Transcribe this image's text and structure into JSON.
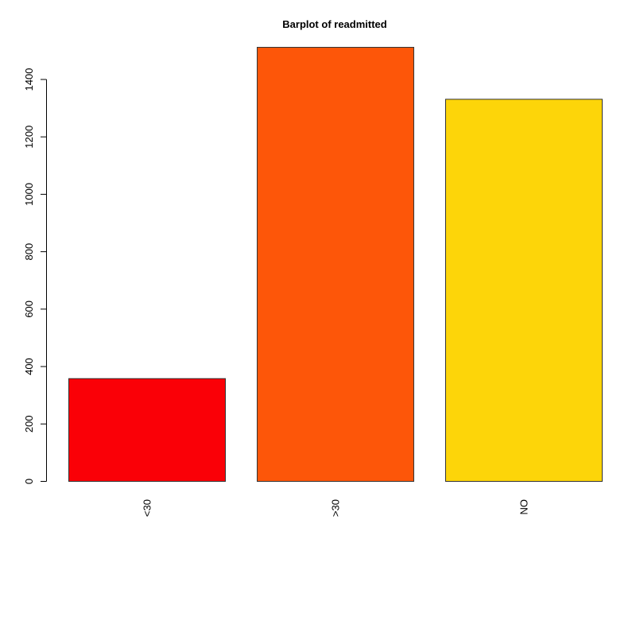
{
  "chart_data": {
    "type": "bar",
    "title": "Barplot of readmitted",
    "xlabel": "",
    "ylabel": "",
    "categories": [
      "<30",
      ">30",
      "NO"
    ],
    "values": [
      358,
      1512,
      1331
    ],
    "colors": [
      "#FA0007",
      "#FD5609",
      "#FDD509"
    ],
    "y_ticks": [
      0,
      200,
      400,
      600,
      800,
      1000,
      1200,
      1400
    ],
    "y_tick_labels": [
      "0",
      "200",
      "400",
      "600",
      "800",
      "1000",
      "1200",
      "1400"
    ],
    "ylim": [
      0,
      1512
    ],
    "grid": false,
    "legend": "none"
  }
}
